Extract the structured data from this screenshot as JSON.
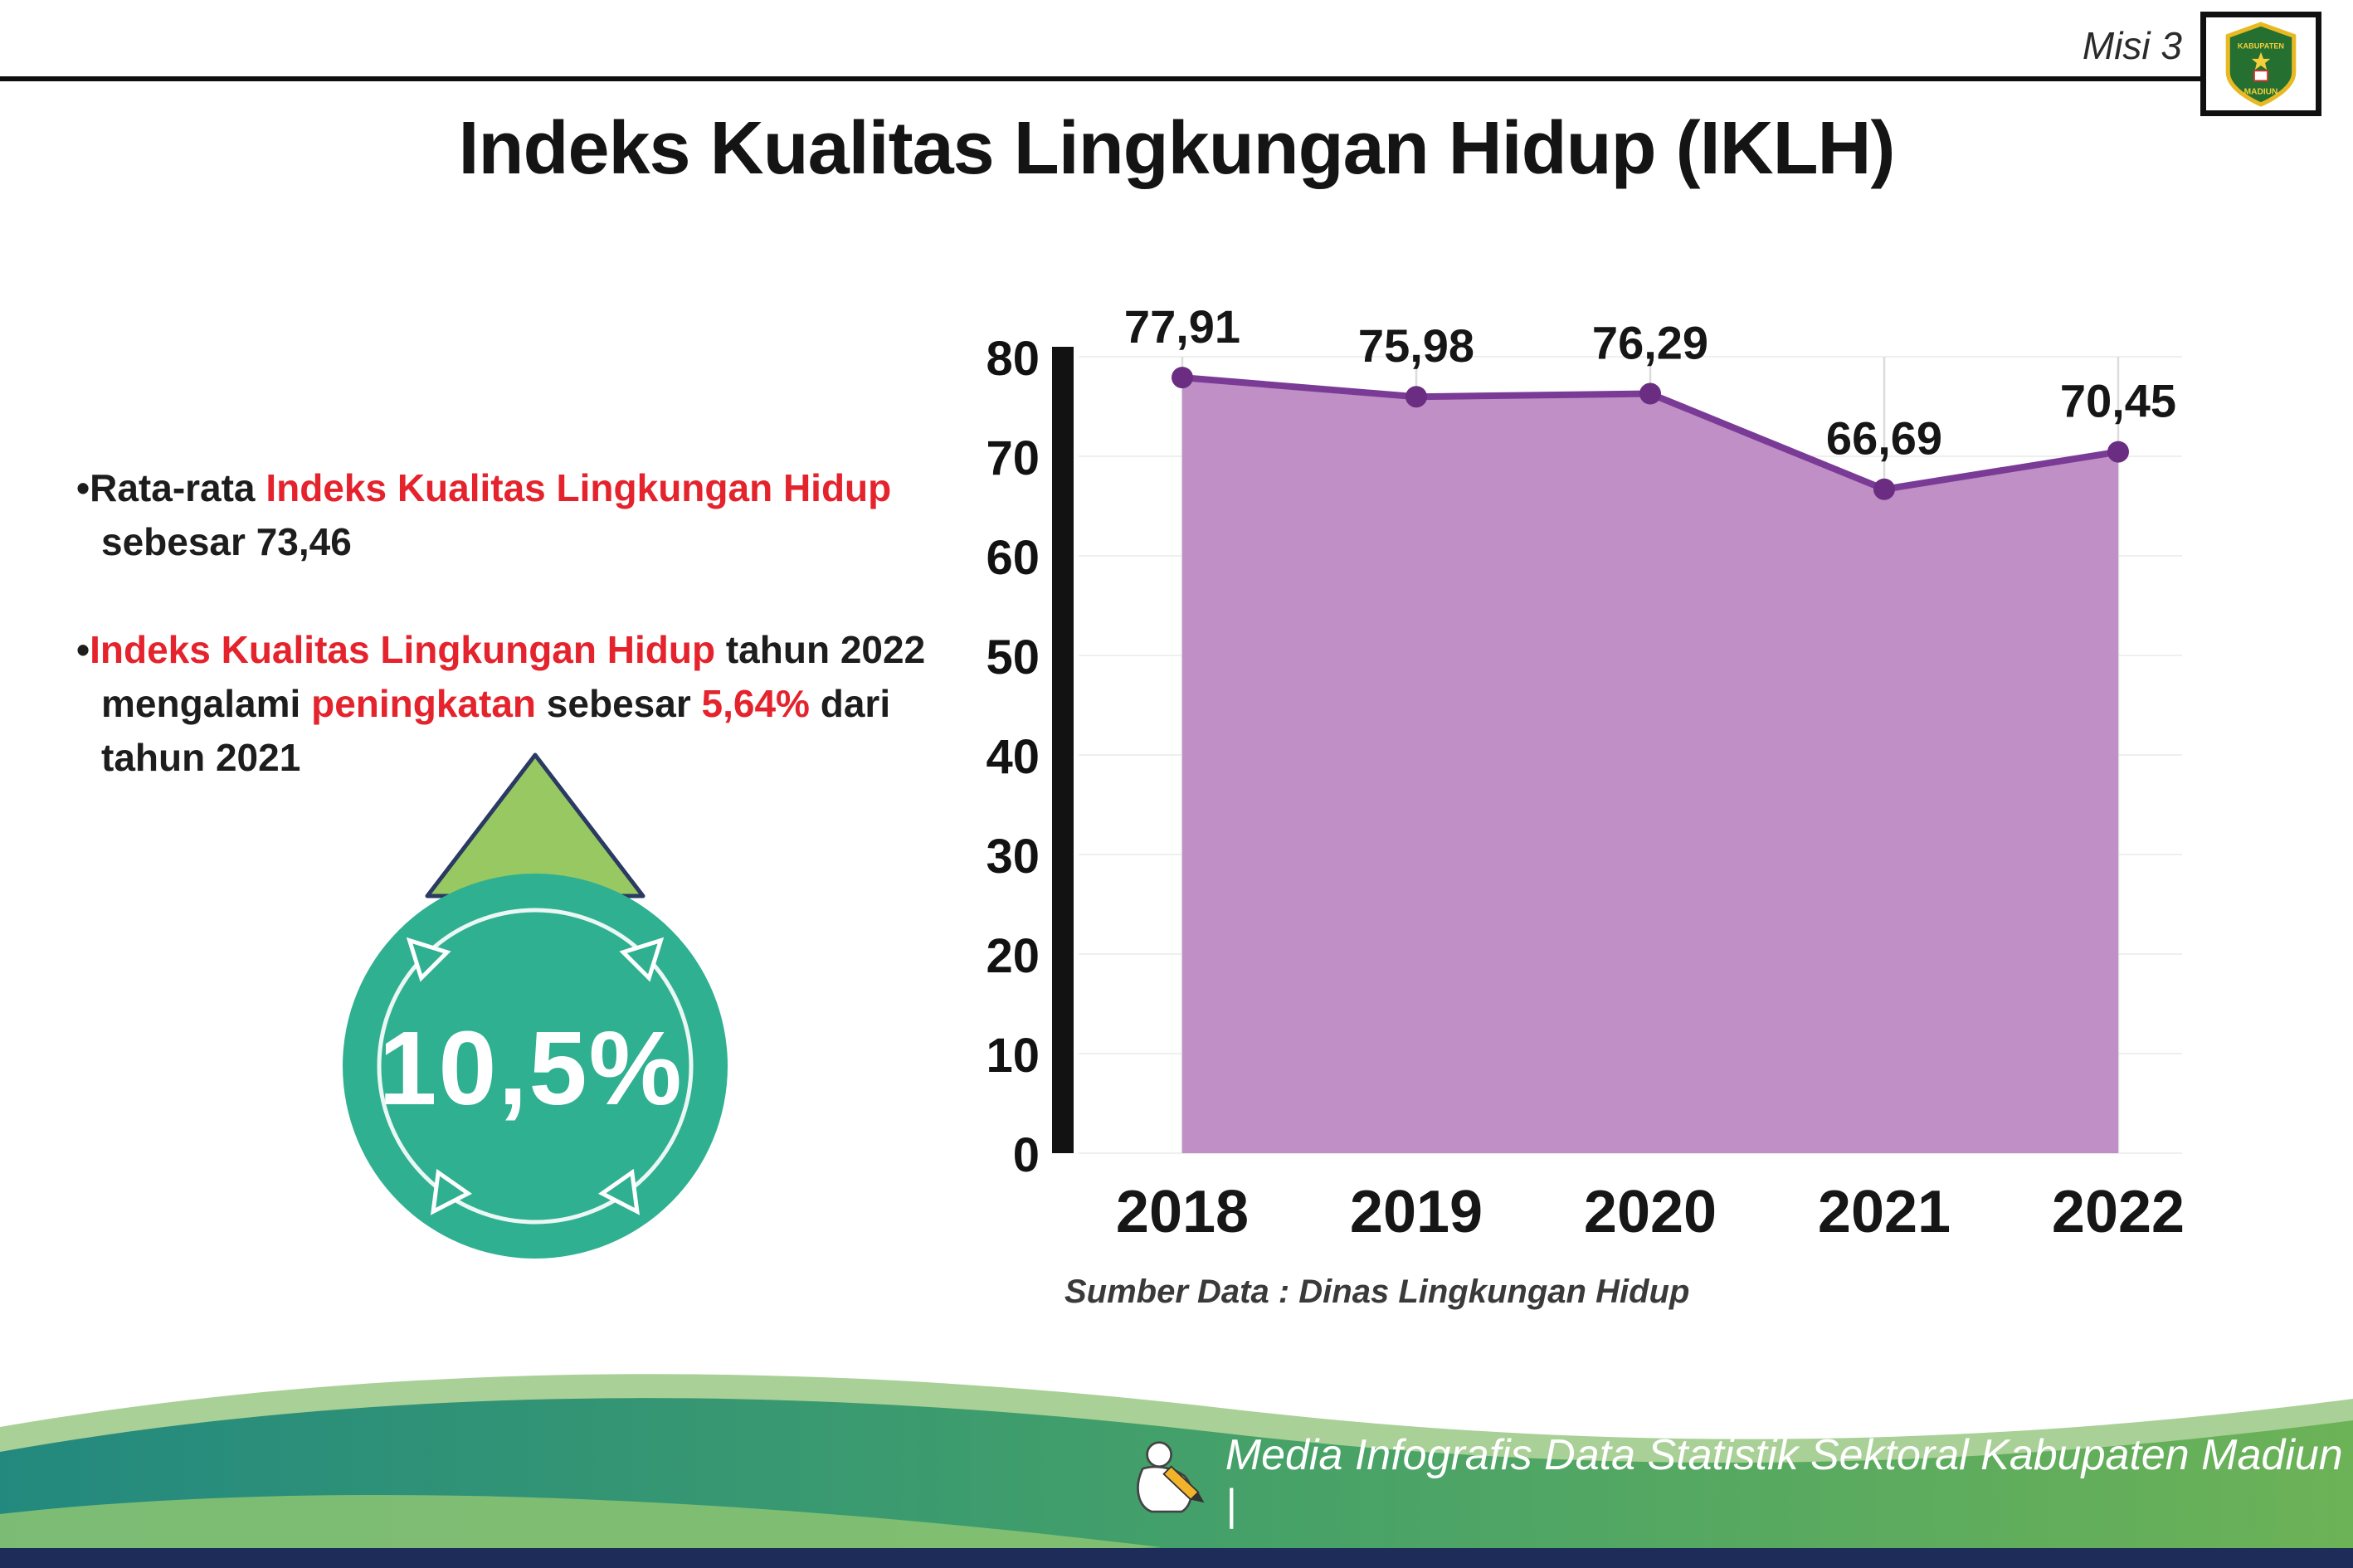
{
  "header": {
    "misi_label": "Misi 3",
    "title": "Indeks Kualitas Lingkungan Hidup (IKLH)",
    "logo": {
      "name": "Kabupaten Madiun",
      "top_text": "KABUPATEN",
      "bottom_text": "MADIUN"
    }
  },
  "content": {
    "bullet_marker": "•",
    "bullet1": {
      "seg1": "Rata-rata ",
      "seg2": "Indeks Kualitas Lingkungan Hidup",
      "seg3": " sebesar 73,46"
    },
    "bullet2": {
      "seg1": "Indeks Kualitas Lingkungan Hidup",
      "seg2": " tahun 2022 mengalami ",
      "seg3": "peningkatan",
      "seg4": " sebesar ",
      "seg5": "5,64%",
      "seg6": " dari tahun 2021"
    },
    "badge_value": "10,5%"
  },
  "chart_data": {
    "type": "area",
    "categories": [
      "2018",
      "2019",
      "2020",
      "2021",
      "2022"
    ],
    "values": [
      77.91,
      75.98,
      76.29,
      66.69,
      70.45
    ],
    "value_labels": [
      "77,91",
      "75,98",
      "76,29",
      "66,69",
      "70,45"
    ],
    "title": "",
    "xlabel": "",
    "ylabel": "",
    "ylim": [
      0,
      80
    ],
    "yticks": [
      0,
      10,
      20,
      30,
      40,
      50,
      60,
      70,
      80
    ],
    "grid": true,
    "legend": false,
    "area_color": "#bf8fc5",
    "line_color": "#7a3b96",
    "dot_color": "#6b2d82",
    "source": "Sumber Data : Dinas Lingkungan Hidup"
  },
  "footer": {
    "caption": "Media Infografis Data Statistik Sektoral Kabupaten Madiun |"
  },
  "colors": {
    "accent_red": "#e4232d",
    "badge_teal": "#2fb091",
    "arrow_green": "#97c862",
    "footer_navy": "#1d2c58"
  }
}
